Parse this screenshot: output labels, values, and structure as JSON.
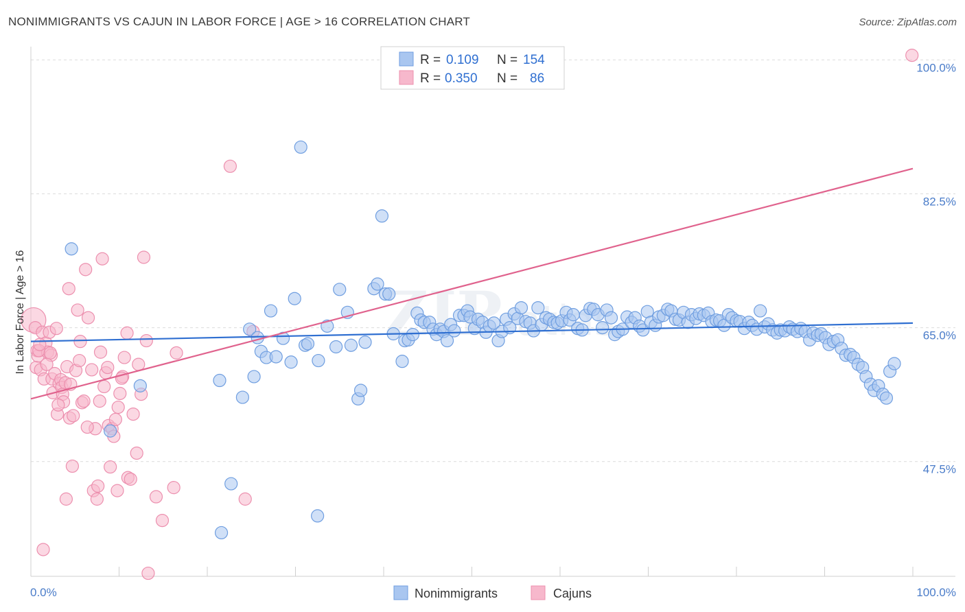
{
  "header": {
    "title": "NONIMMIGRANTS VS CAJUN IN LABOR FORCE | AGE > 16 CORRELATION CHART",
    "source": "Source: ZipAtlas.com"
  },
  "colors": {
    "blue_fill": "#a9c6f0",
    "blue_stroke": "#6f9ee0",
    "blue_line": "#2f6fd1",
    "pink_fill": "#f7b8cc",
    "pink_stroke": "#ec8fae",
    "pink_line": "#e0628d",
    "tick_blue": "#4a7cc9"
  },
  "legend": {
    "rows": [
      {
        "r_label": "R =",
        "r_value": "0.109",
        "n_label": "N =",
        "n_value": "154"
      },
      {
        "r_label": "R =",
        "r_value": "0.350",
        "n_label": "N =",
        "n_value": "86"
      }
    ]
  },
  "bottom_legend": [
    "Nonimmigrants",
    "Cajuns"
  ],
  "chart_data": {
    "type": "scatter",
    "title": "NONIMMIGRANTS VS CAJUN IN LABOR FORCE | AGE > 16 CORRELATION CHART",
    "xlabel": "",
    "ylabel": "In Labor Force | Age > 16",
    "xlim": [
      0,
      100
    ],
    "ylim": [
      32.5,
      102
    ],
    "x_tick_labels": [
      "0.0%",
      "100.0%"
    ],
    "y_ticks": [
      47.5,
      65.0,
      82.5,
      100.0
    ],
    "y_tick_labels": [
      "47.5%",
      "65.0%",
      "82.5%",
      "100.0%"
    ],
    "grid": true,
    "legend_position": "top-center",
    "series": [
      {
        "name": "Nonimmigrants",
        "color": "#a9c6f0",
        "trend": {
          "x": [
            0,
            100
          ],
          "y": [
            63.2,
            65.6
          ]
        },
        "points": [
          [
            4.6,
            75.3
          ],
          [
            12.4,
            57.4
          ],
          [
            9.0,
            51.5
          ],
          [
            21.4,
            58.1
          ],
          [
            21.6,
            38.2
          ],
          [
            22.7,
            44.6
          ],
          [
            24.0,
            55.9
          ],
          [
            25.3,
            58.6
          ],
          [
            24.8,
            64.8
          ],
          [
            25.7,
            63.7
          ],
          [
            26.1,
            61.9
          ],
          [
            26.7,
            61.1
          ],
          [
            27.2,
            67.2
          ],
          [
            27.8,
            61.2
          ],
          [
            28.6,
            63.6
          ],
          [
            29.5,
            60.5
          ],
          [
            29.9,
            68.8
          ],
          [
            30.6,
            88.6
          ],
          [
            31.1,
            62.7
          ],
          [
            31.4,
            62.9
          ],
          [
            32.5,
            40.4
          ],
          [
            32.6,
            60.7
          ],
          [
            33.6,
            65.2
          ],
          [
            34.6,
            62.5
          ],
          [
            35.0,
            70.0
          ],
          [
            35.9,
            67.0
          ],
          [
            36.3,
            62.7
          ],
          [
            37.1,
            55.7
          ],
          [
            37.4,
            56.8
          ],
          [
            37.9,
            63.1
          ],
          [
            38.9,
            70.1
          ],
          [
            39.3,
            70.7
          ],
          [
            39.8,
            79.6
          ],
          [
            40.2,
            69.4
          ],
          [
            40.6,
            69.4
          ],
          [
            41.1,
            64.2
          ],
          [
            42.1,
            60.6
          ],
          [
            42.4,
            63.3
          ],
          [
            42.8,
            63.4
          ],
          [
            43.3,
            64.1
          ],
          [
            43.8,
            66.9
          ],
          [
            44.2,
            66.0
          ],
          [
            44.6,
            65.7
          ],
          [
            45.2,
            65.7
          ],
          [
            45.6,
            64.8
          ],
          [
            46.0,
            64.1
          ],
          [
            46.4,
            64.8
          ],
          [
            46.8,
            64.5
          ],
          [
            47.2,
            63.3
          ],
          [
            47.6,
            65.4
          ],
          [
            48.0,
            64.6
          ],
          [
            48.6,
            66.6
          ],
          [
            49.1,
            66.6
          ],
          [
            49.5,
            67.2
          ],
          [
            49.8,
            66.4
          ],
          [
            50.3,
            64.9
          ],
          [
            50.7,
            66.1
          ],
          [
            51.2,
            65.7
          ],
          [
            51.6,
            64.4
          ],
          [
            52.0,
            65.2
          ],
          [
            52.5,
            65.6
          ],
          [
            53.0,
            63.3
          ],
          [
            53.4,
            64.5
          ],
          [
            53.9,
            66.1
          ],
          [
            54.3,
            65.0
          ],
          [
            54.8,
            66.8
          ],
          [
            55.2,
            66.2
          ],
          [
            55.6,
            67.6
          ],
          [
            56.1,
            65.8
          ],
          [
            56.6,
            65.6
          ],
          [
            57.0,
            64.6
          ],
          [
            57.5,
            67.6
          ],
          [
            57.9,
            65.4
          ],
          [
            58.4,
            66.3
          ],
          [
            58.8,
            66.1
          ],
          [
            59.3,
            65.7
          ],
          [
            59.7,
            65.6
          ],
          [
            60.2,
            65.9
          ],
          [
            60.7,
            67.0
          ],
          [
            61.1,
            66.0
          ],
          [
            61.5,
            66.7
          ],
          [
            62.0,
            64.9
          ],
          [
            62.5,
            64.7
          ],
          [
            62.9,
            66.6
          ],
          [
            63.4,
            67.5
          ],
          [
            63.8,
            67.4
          ],
          [
            64.3,
            66.7
          ],
          [
            64.8,
            65.0
          ],
          [
            65.3,
            67.3
          ],
          [
            65.8,
            66.3
          ],
          [
            66.2,
            64.1
          ],
          [
            66.6,
            64.5
          ],
          [
            67.1,
            64.8
          ],
          [
            67.6,
            66.4
          ],
          [
            68.1,
            65.7
          ],
          [
            68.5,
            66.3
          ],
          [
            69.0,
            65.2
          ],
          [
            69.4,
            64.7
          ],
          [
            69.9,
            67.1
          ],
          [
            70.3,
            65.7
          ],
          [
            70.8,
            65.3
          ],
          [
            71.2,
            66.4
          ],
          [
            71.7,
            66.6
          ],
          [
            72.2,
            67.4
          ],
          [
            72.6,
            67.2
          ],
          [
            73.1,
            66.1
          ],
          [
            73.5,
            66.0
          ],
          [
            74.0,
            67.0
          ],
          [
            74.5,
            65.7
          ],
          [
            74.9,
            66.7
          ],
          [
            75.4,
            66.2
          ],
          [
            75.8,
            66.8
          ],
          [
            76.3,
            66.6
          ],
          [
            76.8,
            66.9
          ],
          [
            77.2,
            65.8
          ],
          [
            77.7,
            66.0
          ],
          [
            78.1,
            65.9
          ],
          [
            78.6,
            65.3
          ],
          [
            79.1,
            66.7
          ],
          [
            79.5,
            66.3
          ],
          [
            80.0,
            65.9
          ],
          [
            80.4,
            65.8
          ],
          [
            80.9,
            64.9
          ],
          [
            81.4,
            65.7
          ],
          [
            81.8,
            65.3
          ],
          [
            82.3,
            64.8
          ],
          [
            82.7,
            67.2
          ],
          [
            83.2,
            65.1
          ],
          [
            83.6,
            65.5
          ],
          [
            84.1,
            64.7
          ],
          [
            84.6,
            64.3
          ],
          [
            85.0,
            64.7
          ],
          [
            85.5,
            64.6
          ],
          [
            86.0,
            65.1
          ],
          [
            86.4,
            64.8
          ],
          [
            86.9,
            64.5
          ],
          [
            87.3,
            64.9
          ],
          [
            87.8,
            64.5
          ],
          [
            88.3,
            63.4
          ],
          [
            88.7,
            64.3
          ],
          [
            89.2,
            64.0
          ],
          [
            89.6,
            64.2
          ],
          [
            90.1,
            63.7
          ],
          [
            90.5,
            62.8
          ],
          [
            91.0,
            63.2
          ],
          [
            91.5,
            63.4
          ],
          [
            91.9,
            62.3
          ],
          [
            92.4,
            61.4
          ],
          [
            92.9,
            61.5
          ],
          [
            93.3,
            61.1
          ],
          [
            93.8,
            60.2
          ],
          [
            94.3,
            59.8
          ],
          [
            94.7,
            58.6
          ],
          [
            95.2,
            57.6
          ],
          [
            95.6,
            56.8
          ],
          [
            96.1,
            57.4
          ],
          [
            96.6,
            56.3
          ],
          [
            97.0,
            55.8
          ],
          [
            97.4,
            59.3
          ],
          [
            97.9,
            60.3
          ]
        ]
      },
      {
        "name": "Cajuns",
        "color": "#f7b8cc",
        "trend": {
          "x": [
            0,
            100
          ],
          "y": [
            55.7,
            85.8
          ]
        },
        "points": [
          [
            0.3,
            66.0
          ],
          [
            0.5,
            65.0
          ],
          [
            0.6,
            59.8
          ],
          [
            0.7,
            62.0
          ],
          [
            0.8,
            61.3
          ],
          [
            0.9,
            62.0
          ],
          [
            1.1,
            59.5
          ],
          [
            1.3,
            64.4
          ],
          [
            1.5,
            58.3
          ],
          [
            1.7,
            63.0
          ],
          [
            1.9,
            61.8
          ],
          [
            2.1,
            64.4
          ],
          [
            2.3,
            61.4
          ],
          [
            2.4,
            58.3
          ],
          [
            2.5,
            56.5
          ],
          [
            2.7,
            59.0
          ],
          [
            2.9,
            64.9
          ],
          [
            3.0,
            53.7
          ],
          [
            3.2,
            57.7
          ],
          [
            3.4,
            58.2
          ],
          [
            3.5,
            57.2
          ],
          [
            3.6,
            56.3
          ],
          [
            3.7,
            55.3
          ],
          [
            3.9,
            57.8
          ],
          [
            4.0,
            42.6
          ],
          [
            4.1,
            59.9
          ],
          [
            4.3,
            70.1
          ],
          [
            4.4,
            53.2
          ],
          [
            4.5,
            57.6
          ],
          [
            4.7,
            46.9
          ],
          [
            4.8,
            53.5
          ],
          [
            5.1,
            59.4
          ],
          [
            5.3,
            67.3
          ],
          [
            5.5,
            60.7
          ],
          [
            5.6,
            63.2
          ],
          [
            5.8,
            55.2
          ],
          [
            6.0,
            55.4
          ],
          [
            6.2,
            72.6
          ],
          [
            6.5,
            66.3
          ],
          [
            6.9,
            59.5
          ],
          [
            7.1,
            43.7
          ],
          [
            7.3,
            51.8
          ],
          [
            7.5,
            42.6
          ],
          [
            7.8,
            55.4
          ],
          [
            7.9,
            61.8
          ],
          [
            8.1,
            74.0
          ],
          [
            8.3,
            57.3
          ],
          [
            8.5,
            59.1
          ],
          [
            8.7,
            59.8
          ],
          [
            8.8,
            52.2
          ],
          [
            9.0,
            46.8
          ],
          [
            9.2,
            51.8
          ],
          [
            9.4,
            50.8
          ],
          [
            9.6,
            53.0
          ],
          [
            9.9,
            54.6
          ],
          [
            10.1,
            56.4
          ],
          [
            10.4,
            58.6
          ],
          [
            10.6,
            61.1
          ],
          [
            10.9,
            64.3
          ],
          [
            11.0,
            45.4
          ],
          [
            11.3,
            45.2
          ],
          [
            11.6,
            53.7
          ],
          [
            12.0,
            48.6
          ],
          [
            12.2,
            60.2
          ],
          [
            12.5,
            56.3
          ],
          [
            12.8,
            74.2
          ],
          [
            13.1,
            63.3
          ],
          [
            13.3,
            32.9
          ],
          [
            14.2,
            42.9
          ],
          [
            14.9,
            39.8
          ],
          [
            16.2,
            44.1
          ],
          [
            16.5,
            61.7
          ],
          [
            22.6,
            86.1
          ],
          [
            24.3,
            42.6
          ],
          [
            25.2,
            64.5
          ],
          [
            1.4,
            36.0
          ],
          [
            0.9,
            62.0
          ],
          [
            1.8,
            60.2
          ],
          [
            3.1,
            54.9
          ],
          [
            6.4,
            52.0
          ],
          [
            7.6,
            44.3
          ],
          [
            9.8,
            43.7
          ],
          [
            10.3,
            58.4
          ],
          [
            2.2,
            61.7
          ],
          [
            99.9,
            100.6
          ],
          [
            1.0,
            62.8
          ]
        ]
      }
    ]
  }
}
